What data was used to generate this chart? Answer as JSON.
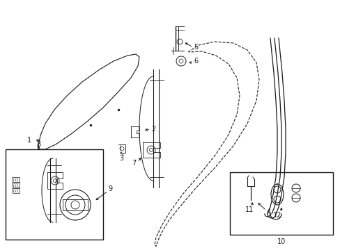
{
  "bg_color": "#ffffff",
  "line_color": "#1a1a1a",
  "fig_width": 4.89,
  "fig_height": 3.6,
  "dpi": 100,
  "label_fs": 7.0
}
